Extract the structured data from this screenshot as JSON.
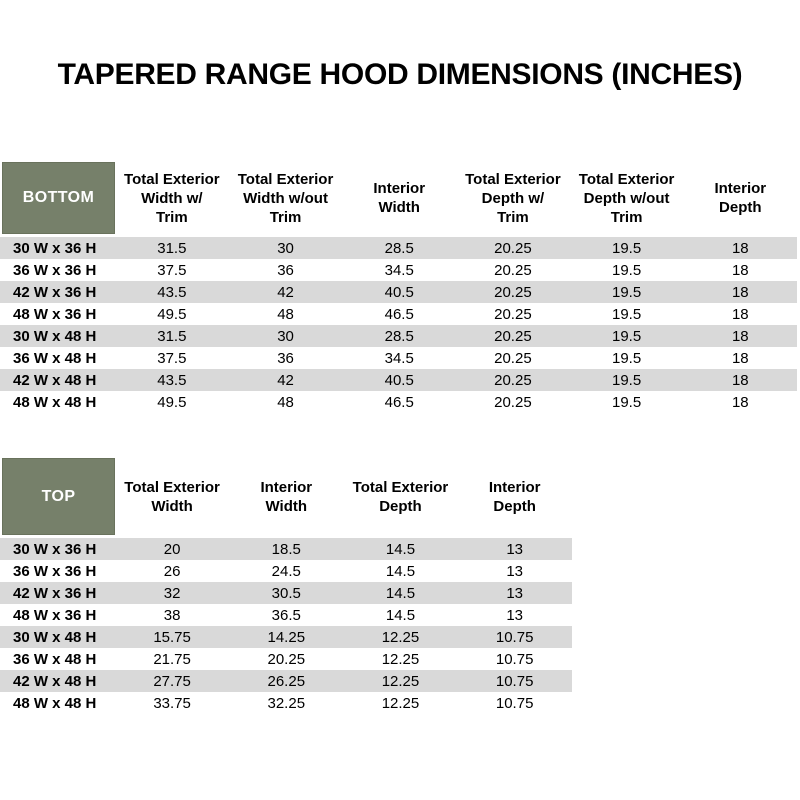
{
  "title": "TAPERED RANGE HOOD DIMENSIONS (INCHES)",
  "colors": {
    "header_cell_bg": "#76806A",
    "header_cell_border": "#69725C",
    "header_cell_text": "#FFFFFF",
    "row_stripe_bg": "#D9D9D9",
    "row_alt_bg": "#FFFFFF",
    "text": "#000000"
  },
  "tables": [
    {
      "name": "bottom",
      "corner_label": "BOTTOM",
      "columns": [
        "Total Exterior\nWidth w/\nTrim",
        "Total Exterior\nWidth w/out\nTrim",
        "Interior\nWidth",
        "Total Exterior\nDepth w/\nTrim",
        "Total Exterior\nDepth w/out\nTrim",
        "Interior\nDepth"
      ],
      "rows": [
        {
          "label": "30 W x 36 H",
          "values": [
            "31.5",
            "30",
            "28.5",
            "20.25",
            "19.5",
            "18"
          ]
        },
        {
          "label": "36 W x 36 H",
          "values": [
            "37.5",
            "36",
            "34.5",
            "20.25",
            "19.5",
            "18"
          ]
        },
        {
          "label": "42 W x 36 H",
          "values": [
            "43.5",
            "42",
            "40.5",
            "20.25",
            "19.5",
            "18"
          ]
        },
        {
          "label": "48 W x 36 H",
          "values": [
            "49.5",
            "48",
            "46.5",
            "20.25",
            "19.5",
            "18"
          ]
        },
        {
          "label": "30 W x 48 H",
          "values": [
            "31.5",
            "30",
            "28.5",
            "20.25",
            "19.5",
            "18"
          ]
        },
        {
          "label": "36 W x 48 H",
          "values": [
            "37.5",
            "36",
            "34.5",
            "20.25",
            "19.5",
            "18"
          ]
        },
        {
          "label": "42 W x 48 H",
          "values": [
            "43.5",
            "42",
            "40.5",
            "20.25",
            "19.5",
            "18"
          ]
        },
        {
          "label": "48 W x 48 H",
          "values": [
            "49.5",
            "48",
            "46.5",
            "20.25",
            "19.5",
            "18"
          ]
        }
      ]
    },
    {
      "name": "top",
      "corner_label": "TOP",
      "columns": [
        "Total Exterior\nWidth",
        "Interior\nWidth",
        "Total Exterior\nDepth",
        "Interior\nDepth"
      ],
      "rows": [
        {
          "label": "30 W x 36 H",
          "values": [
            "20",
            "18.5",
            "14.5",
            "13"
          ]
        },
        {
          "label": "36 W x 36 H",
          "values": [
            "26",
            "24.5",
            "14.5",
            "13"
          ]
        },
        {
          "label": "42 W x 36 H",
          "values": [
            "32",
            "30.5",
            "14.5",
            "13"
          ]
        },
        {
          "label": "48 W x 36 H",
          "values": [
            "38",
            "36.5",
            "14.5",
            "13"
          ]
        },
        {
          "label": "30 W x 48 H",
          "values": [
            "15.75",
            "14.25",
            "12.25",
            "10.75"
          ]
        },
        {
          "label": "36 W x 48 H",
          "values": [
            "21.75",
            "20.25",
            "12.25",
            "10.75"
          ]
        },
        {
          "label": "42 W x 48 H",
          "values": [
            "27.75",
            "26.25",
            "12.25",
            "10.75"
          ]
        },
        {
          "label": "48 W x 48 H",
          "values": [
            "33.75",
            "32.25",
            "12.25",
            "10.75"
          ]
        }
      ]
    }
  ]
}
